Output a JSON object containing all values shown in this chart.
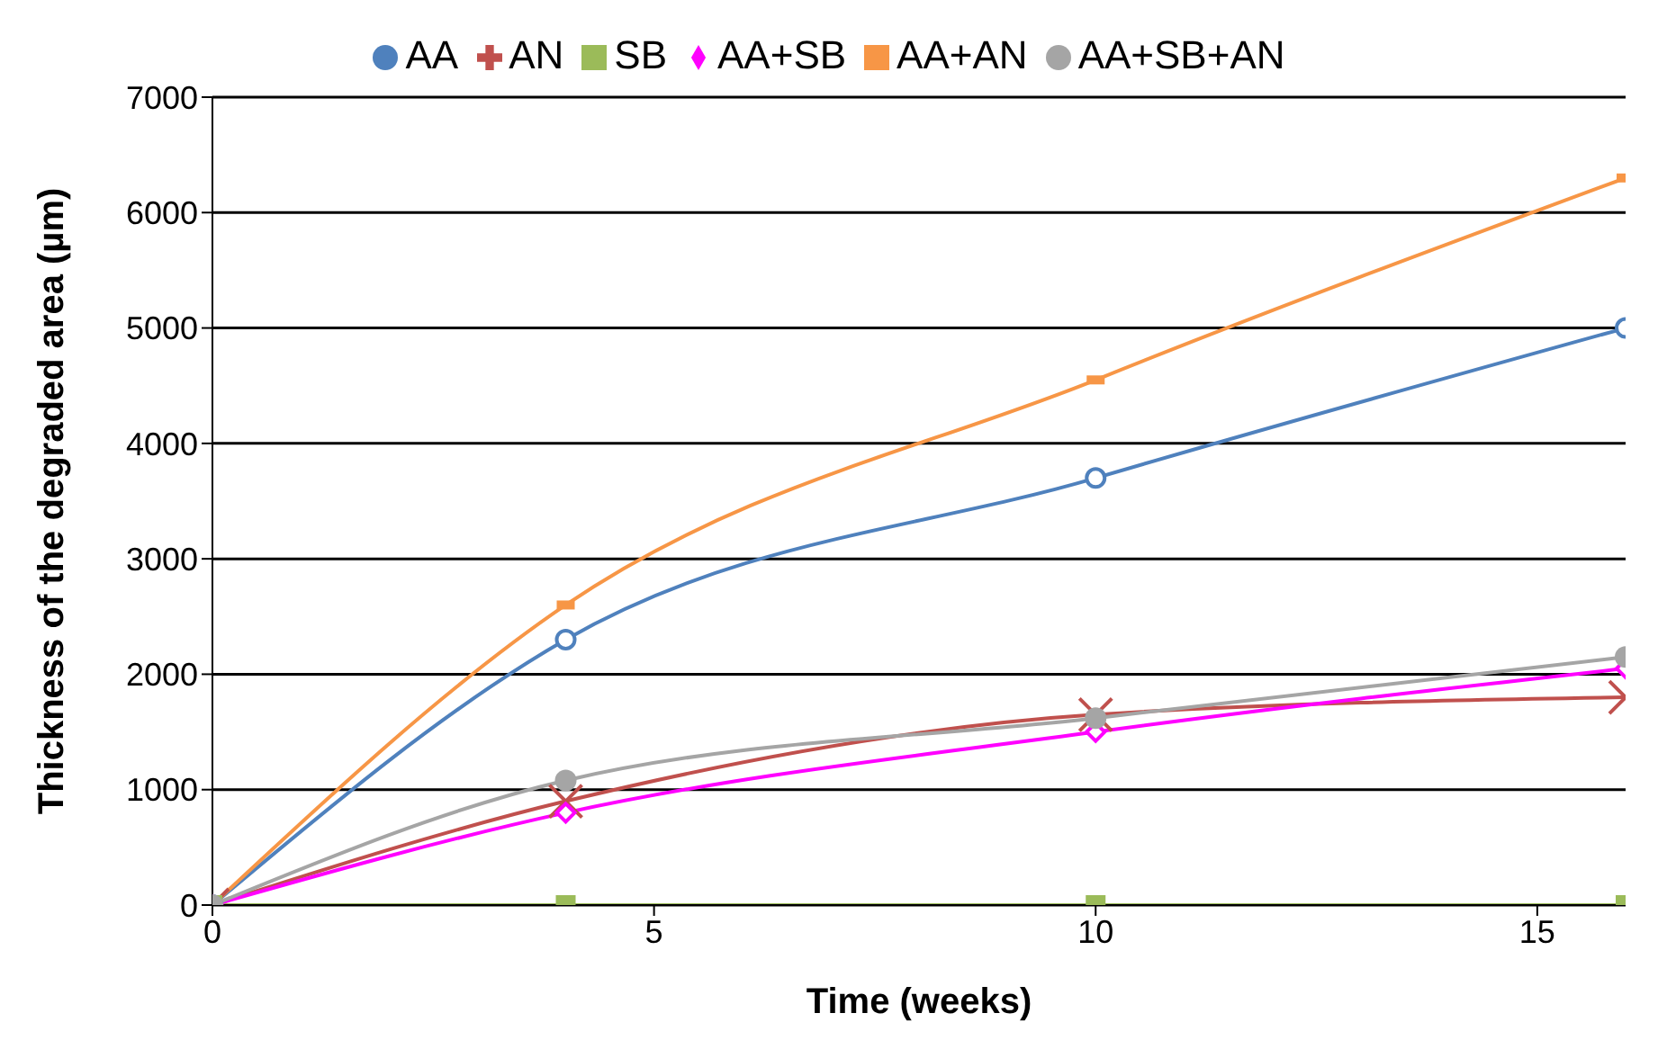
{
  "chart_data": {
    "type": "line",
    "xlabel": "Time (weeks)",
    "ylabel": "Thickness of the degraded area (µm)",
    "x": [
      0,
      4,
      10,
      16
    ],
    "xlim": [
      0,
      16
    ],
    "xticks": [
      0,
      5,
      10,
      15
    ],
    "ylim": [
      0,
      7000
    ],
    "yticks": [
      0,
      1000,
      2000,
      3000,
      4000,
      5000,
      6000,
      7000
    ],
    "grid": "y",
    "legend": "top",
    "series": [
      {
        "name": "AA",
        "color": "#4f81bd",
        "marker": "circle",
        "values": [
          0,
          2300,
          3700,
          5000
        ]
      },
      {
        "name": "AN",
        "color": "#c0504d",
        "marker": "cross",
        "values": [
          0,
          900,
          1650,
          1800
        ]
      },
      {
        "name": "SB",
        "color": "#9bbb59",
        "marker": "square",
        "values": [
          0,
          0,
          0,
          0
        ]
      },
      {
        "name": "AA+SB",
        "color": "#ff00ff",
        "marker": "diamond",
        "values": [
          0,
          800,
          1500,
          2050
        ]
      },
      {
        "name": "AA+AN",
        "color": "#f79646",
        "marker": "square",
        "values": [
          0,
          2600,
          4550,
          6300
        ]
      },
      {
        "name": "AA+SB+AN",
        "color": "#a5a5a5",
        "marker": "circle",
        "values": [
          0,
          1080,
          1620,
          2150
        ]
      }
    ]
  }
}
